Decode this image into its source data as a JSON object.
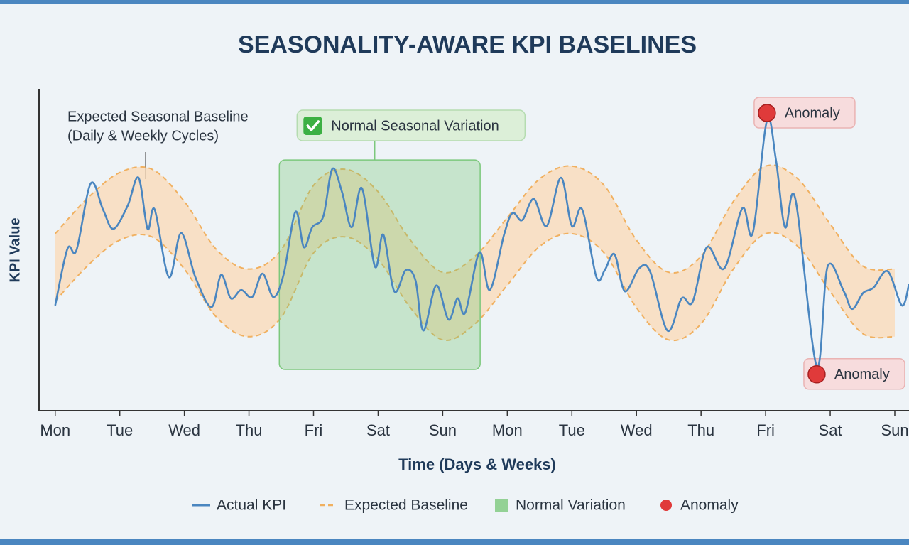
{
  "chart_data": {
    "type": "line",
    "title": "SEASONALITY-AWARE KPI BASELINES",
    "xlabel": "Time (Days & Weeks)",
    "ylabel": "KPI Value",
    "xlim": [
      -0.25,
      13.22
    ],
    "ylim": [
      0,
      100
    ],
    "xticks": [
      {
        "value": 0,
        "label": "Mon"
      },
      {
        "value": 1,
        "label": "Tue"
      },
      {
        "value": 2,
        "label": "Wed"
      },
      {
        "value": 3,
        "label": "Thu"
      },
      {
        "value": 4,
        "label": "Fri"
      },
      {
        "value": 5,
        "label": "Sat"
      },
      {
        "value": 6,
        "label": "Sun"
      },
      {
        "value": 7,
        "label": "Mon"
      },
      {
        "value": 8,
        "label": "Tue"
      },
      {
        "value": 9,
        "label": "Wed"
      },
      {
        "value": 10,
        "label": "Thu"
      },
      {
        "value": 11,
        "label": "Fri"
      },
      {
        "value": 12,
        "label": "Sat"
      },
      {
        "value": 13,
        "label": "Sun"
      }
    ],
    "series": [
      {
        "name": "Actual KPI",
        "color": "#4a86c0",
        "x": [
          0.0,
          0.19,
          0.33,
          0.55,
          0.74,
          0.9,
          1.12,
          1.29,
          1.43,
          1.54,
          1.76,
          1.95,
          2.17,
          2.42,
          2.57,
          2.72,
          2.88,
          3.05,
          3.21,
          3.38,
          3.54,
          3.72,
          3.85,
          3.98,
          4.15,
          4.29,
          4.44,
          4.59,
          4.75,
          4.95,
          5.08,
          5.25,
          5.43,
          5.58,
          5.7,
          5.9,
          6.09,
          6.23,
          6.35,
          6.57,
          6.73,
          6.95,
          7.08,
          7.23,
          7.41,
          7.61,
          7.83,
          8.0,
          8.16,
          8.38,
          8.51,
          8.66,
          8.82,
          9.04,
          9.21,
          9.48,
          9.7,
          9.87,
          10.09,
          10.36,
          10.64,
          10.8,
          11.02,
          11.16,
          11.3,
          11.46,
          11.79,
          11.96,
          12.21,
          12.34,
          12.51,
          12.67,
          12.89,
          13.11,
          13.22
        ],
        "values": [
          32.7,
          50.3,
          49.9,
          70.6,
          62.5,
          56.5,
          63.6,
          72.4,
          56.5,
          62.5,
          41.5,
          55.2,
          41.5,
          32.2,
          42.2,
          34.9,
          37.5,
          35.3,
          42.6,
          35.3,
          42.6,
          61.8,
          50.8,
          57.0,
          60.3,
          75.1,
          68.0,
          57.0,
          69.1,
          44.8,
          54.7,
          37.1,
          43.7,
          40.4,
          24.9,
          38.9,
          28.3,
          34.9,
          30.5,
          49.2,
          37.5,
          54.7,
          61.4,
          59.2,
          65.8,
          57.4,
          72.4,
          57.4,
          62.5,
          41.5,
          43.7,
          48.6,
          37.1,
          44.2,
          43.3,
          24.9,
          34.9,
          33.8,
          50.8,
          44.2,
          62.9,
          55.2,
          90.1,
          77.9,
          57.0,
          65.8,
          13.9,
          44.8,
          37.1,
          31.6,
          36.6,
          38.2,
          43.3,
          32.7,
          39.3
        ]
      },
      {
        "name": "Expected Baseline",
        "color": "#f0b060",
        "band_color": "#fbd9b5",
        "x": [
          0,
          0.5,
          1,
          1.5,
          2,
          2.5,
          3,
          3.5,
          4,
          4.5,
          5,
          5.5,
          6,
          6.5,
          7,
          7.5,
          8,
          8.5,
          9,
          9.5,
          10,
          10.5,
          11,
          11.5,
          12,
          12.5,
          13
        ],
        "upper": [
          55,
          66,
          74,
          75,
          65,
          50,
          44,
          50,
          70,
          75,
          68,
          53,
          43,
          48,
          60,
          72,
          76,
          70,
          53,
          43,
          48,
          65,
          76,
          72,
          58,
          45,
          44
        ],
        "lower": [
          34,
          45,
          53,
          54,
          44,
          29,
          23,
          29,
          49,
          54,
          47,
          32,
          22,
          27,
          39,
          51,
          55,
          49,
          32,
          22,
          27,
          44,
          55,
          51,
          37,
          24,
          23
        ]
      },
      {
        "name": "Normal Variation",
        "color": "#7cc87c",
        "label": "Normal Seasonal Variation",
        "x": [
          3.47,
          6.58
        ],
        "values": [
          12.8,
          77.9
        ]
      },
      {
        "name": "Anomaly",
        "color": "#e03a3a",
        "x": [
          11.02,
          11.79
        ],
        "values": [
          92.5,
          11.3
        ],
        "labels": [
          "Anomaly",
          "Anomaly"
        ]
      }
    ],
    "annotations": [
      {
        "lines": [
          "Expected Seasonal Baseline",
          "(Daily & Weekly Cycles)"
        ]
      }
    ]
  }
}
